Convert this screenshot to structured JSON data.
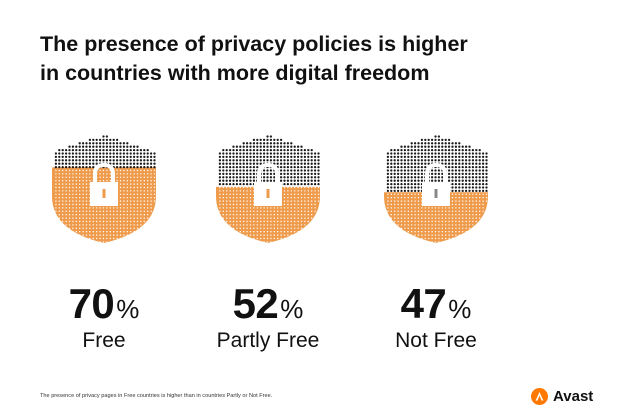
{
  "header": {
    "title_line1": "The presence of privacy policies is higher",
    "title_line2": "in countries with more digital freedom"
  },
  "chart_data": {
    "type": "pictogram",
    "unit": "%",
    "categories": [
      "Free",
      "Partly Free",
      "Not Free"
    ],
    "values": [
      70,
      52,
      47
    ],
    "colors": {
      "filled": "#ef9b4c",
      "unfilled": "#1a1a1a",
      "background": "#ffffff"
    },
    "icon": "shield-lock-icon"
  },
  "panels": [
    {
      "value_text": "70",
      "unit": "%",
      "label": "Free"
    },
    {
      "value_text": "52",
      "unit": "%",
      "label": "Partly Free"
    },
    {
      "value_text": "47",
      "unit": "%",
      "label": "Not Free"
    }
  ],
  "footnote": "The presence of privacy pages in Free countries is higher than in countries Partly or Not Free.",
  "brand": {
    "name": "Avast",
    "color": "#ff7800",
    "icon": "avast-logo-icon"
  }
}
